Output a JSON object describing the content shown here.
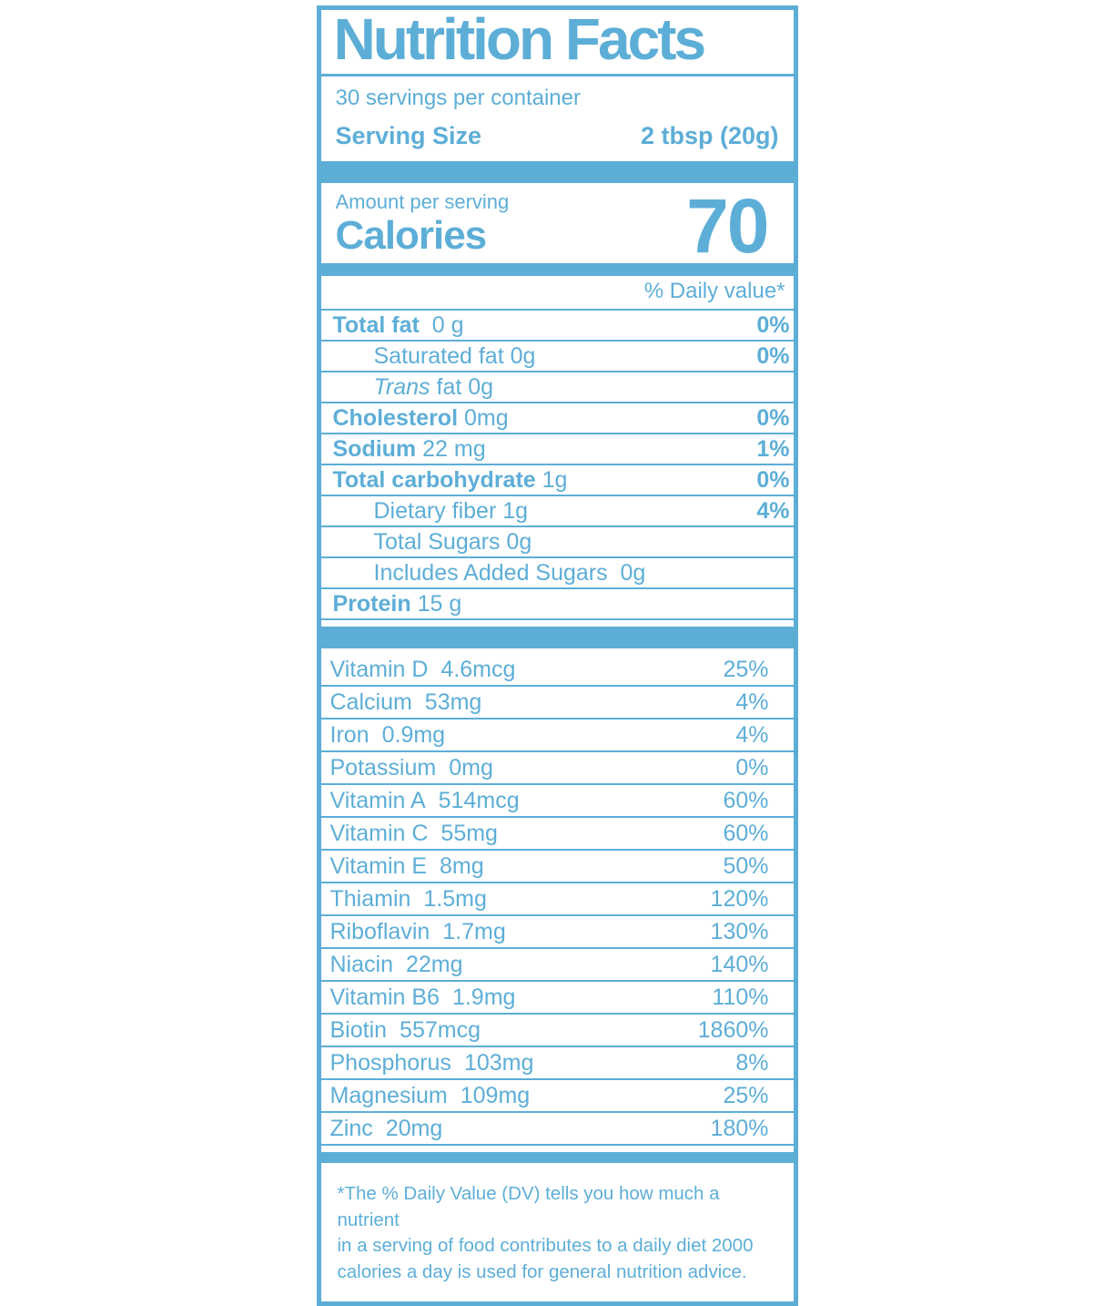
{
  "colors": {
    "accent": "#5daed7"
  },
  "label": {
    "title": "Nutrition Facts",
    "servings_per_container": "30 servings per container",
    "serving_size_label": "Serving Size",
    "serving_size_value": "2 tbsp (20g)",
    "amount_per_serving": "Amount per serving",
    "calories_label": "Calories",
    "calories_value": "70",
    "daily_value_header": "% Daily value*",
    "nutrients": [
      {
        "bold": "Total fat",
        "italic": "",
        "text": "  0 g",
        "dv": "0%",
        "indent": false
      },
      {
        "bold": "",
        "italic": "",
        "text": "Saturated fat 0g",
        "dv": "0%",
        "indent": true
      },
      {
        "bold": "",
        "italic": "Trans",
        "text": " fat 0g",
        "dv": "",
        "indent": true
      },
      {
        "bold": "Cholesterol",
        "italic": "",
        "text": " 0mg",
        "dv": "0%",
        "indent": false
      },
      {
        "bold": "Sodium",
        "italic": "",
        "text": " 22 mg",
        "dv": "1%",
        "indent": false
      },
      {
        "bold": "Total carbohydrate",
        "italic": "",
        "text": " 1g",
        "dv": "0%",
        "indent": false
      },
      {
        "bold": "",
        "italic": "",
        "text": "Dietary fiber 1g",
        "dv": "4%",
        "indent": true
      },
      {
        "bold": "",
        "italic": "",
        "text": "Total Sugars 0g",
        "dv": "",
        "indent": true
      },
      {
        "bold": "",
        "italic": "",
        "text": "Includes Added Sugars  0g",
        "dv": "",
        "indent": true
      },
      {
        "bold": "Protein",
        "italic": "",
        "text": " 15 g",
        "dv": "",
        "indent": false
      }
    ],
    "vitamins": [
      {
        "name": "Vitamin D",
        "amount": "4.6mcg",
        "dv": "25%"
      },
      {
        "name": "Calcium",
        "amount": "53mg",
        "dv": "4%"
      },
      {
        "name": "Iron",
        "amount": "0.9mg",
        "dv": "4%"
      },
      {
        "name": "Potassium",
        "amount": "0mg",
        "dv": "0%"
      },
      {
        "name": "Vitamin A",
        "amount": "514mcg",
        "dv": "60%"
      },
      {
        "name": "Vitamin C",
        "amount": "55mg",
        "dv": "60%"
      },
      {
        "name": "Vitamin E",
        "amount": "8mg",
        "dv": "50%"
      },
      {
        "name": "Thiamin",
        "amount": "1.5mg",
        "dv": "120%"
      },
      {
        "name": "Riboflavin",
        "amount": "1.7mg",
        "dv": "130%"
      },
      {
        "name": "Niacin",
        "amount": "22mg",
        "dv": "140%"
      },
      {
        "name": "Vitamin B6",
        "amount": "1.9mg",
        "dv": "110%"
      },
      {
        "name": "Biotin",
        "amount": "557mcg",
        "dv": "1860%"
      },
      {
        "name": "Phosphorus",
        "amount": "103mg",
        "dv": "8%"
      },
      {
        "name": "Magnesium",
        "amount": "109mg",
        "dv": "25%"
      },
      {
        "name": "Zinc",
        "amount": "20mg",
        "dv": "180%"
      }
    ],
    "footnote": "*The % Daily Value (DV) tells you how much a nutrient\nin a serving of food contributes to a daily diet 2000\ncalories a day is used for general nutrition advice."
  }
}
